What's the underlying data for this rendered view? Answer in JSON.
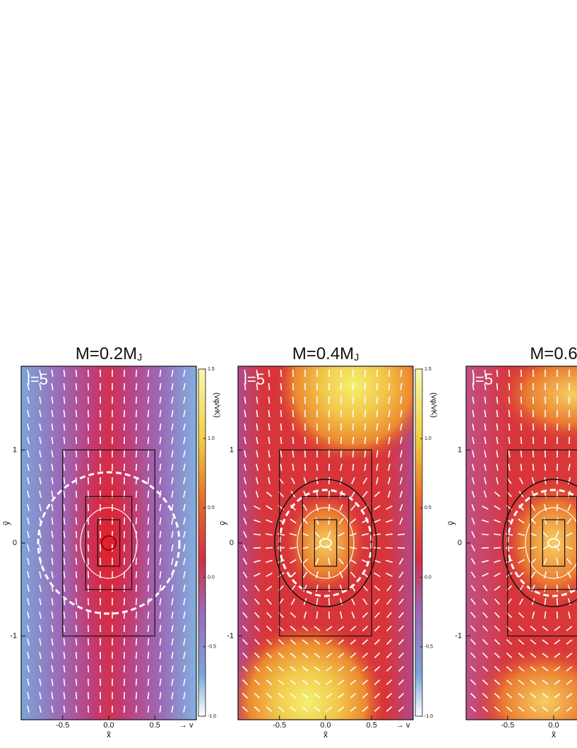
{
  "chart_data": [
    {
      "type": "heatmap",
      "title": "M=0.2M",
      "title_subscript": "J",
      "panel_label": "l=5",
      "x_label": "x̃",
      "y_label": "ỹ",
      "xlim": [
        -0.95,
        0.95
      ],
      "ylim": [
        -1.9,
        1.9
      ],
      "xticks": [
        -0.5,
        {
          "value": 0,
          "label": "0.0"
        },
        0.5
      ],
      "yticks": [
        -1,
        0,
        1
      ],
      "colorbar": {
        "label": "(vφ/vK)",
        "lim": [
          -1,
          1.5
        ],
        "ticks": [
          {
            "value": -1,
            "label": "-1.0"
          },
          -0.5,
          {
            "value": 0,
            "label": "0.0"
          },
          0.5,
          {
            "value": 1,
            "label": "1.0"
          },
          1.5
        ]
      },
      "arrow_label": "→ v"
    },
    {
      "type": "heatmap",
      "title": "M=0.4M",
      "title_subscript": "J",
      "panel_label": "l=5",
      "x_label": "x̃",
      "y_label": "ỹ",
      "xlim": [
        -0.95,
        0.95
      ],
      "ylim": [
        -1.9,
        1.9
      ],
      "xticks": [
        -0.5,
        {
          "value": 0,
          "label": "0.0"
        },
        0.5
      ],
      "yticks": [
        -1,
        0,
        1
      ],
      "colorbar": {
        "label": "(vφ/vK)",
        "lim": [
          -1,
          1.5
        ],
        "ticks": [
          {
            "value": -1,
            "label": "-1.0"
          },
          -0.5,
          {
            "value": 0,
            "label": "0.0"
          },
          0.5,
          {
            "value": 1,
            "label": "1.0"
          },
          1.5
        ]
      },
      "arrow_label": "→ v"
    },
    {
      "type": "heatmap",
      "title": "M=0.6",
      "panel_label": "l=5",
      "x_label": "x̃",
      "y_label": "ỹ",
      "xlim": [
        -0.95,
        0.95
      ],
      "ylim": [
        -1.9,
        1.9
      ],
      "xticks": [
        -0.5,
        {
          "value": 0,
          "label": "0.0"
        }
      ],
      "yticks": [
        -1,
        0,
        1
      ]
    }
  ]
}
